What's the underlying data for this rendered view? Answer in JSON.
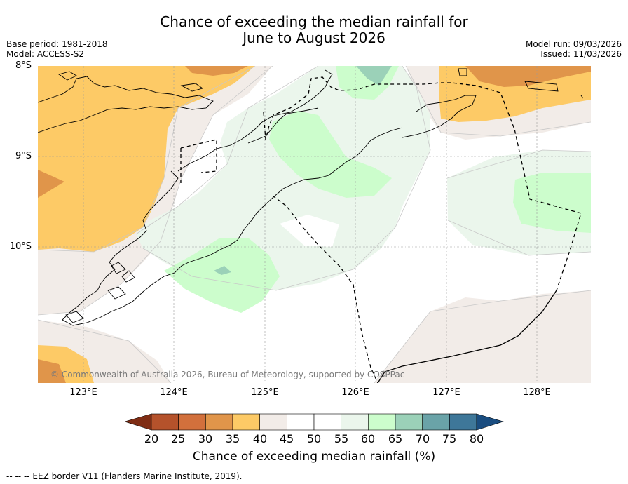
{
  "title": {
    "line1": "Chance of exceeding the median rainfall for",
    "line2": "June to August 2026"
  },
  "meta": {
    "base_period": "Base period: 1981-2018",
    "model": "Model: ACCESS-S2",
    "model_run": "Model run: 09/03/2026",
    "issued": "Issued: 11/03/2026"
  },
  "map": {
    "lat_labels": [
      "8°S",
      "9°S",
      "10°S"
    ],
    "lon_labels": [
      "123°E",
      "124°E",
      "125°E",
      "126°E",
      "127°E",
      "128°E"
    ],
    "copyright": "© Commonwealth of Australia 2026, Bureau of Meteorology, supported by COSPPac"
  },
  "colorbar": {
    "ticks": [
      "20",
      "25",
      "30",
      "35",
      "40",
      "45",
      "50",
      "55",
      "60",
      "65",
      "70",
      "75",
      "80"
    ],
    "colors": [
      "#7f2d14",
      "#b5522b",
      "#d2703c",
      "#e0954a",
      "#fdca66",
      "#f2ece8",
      "#ffffff",
      "#ffffff",
      "#ebf6ec",
      "#ccfdcc",
      "#9bd1b8",
      "#6aa3a8",
      "#3e7799",
      "#1a4d80"
    ],
    "label": "Chance of exceeding median rainfall (%)"
  },
  "footer": {
    "eez_note": "--  --  -- EEZ border V11 (Flanders Marine Institute, 2019)."
  }
}
